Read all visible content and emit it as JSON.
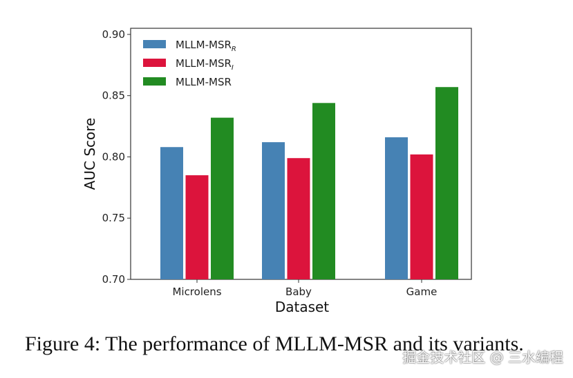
{
  "chart_data": {
    "type": "bar",
    "xlabel": "Dataset",
    "ylabel": "AUC Score",
    "ylim": [
      0.7,
      0.905
    ],
    "yticks": [
      "0.70",
      "0.75",
      "0.80",
      "0.85",
      "0.90"
    ],
    "categories": [
      "Microlens",
      "Baby",
      "Game"
    ],
    "series": [
      {
        "name": "MLLM-MSR",
        "subscript": "R",
        "color": "#4682b4",
        "values": [
          0.808,
          0.812,
          0.816
        ]
      },
      {
        "name": "MLLM-MSR",
        "subscript": "I",
        "color": "#dc143c",
        "values": [
          0.785,
          0.799,
          0.802
        ]
      },
      {
        "name": "MLLM-MSR",
        "subscript": "",
        "color": "#228b22",
        "values": [
          0.832,
          0.844,
          0.857
        ]
      }
    ],
    "legend_position": "top-left"
  },
  "caption": "Figure 4: The performance of MLLM-MSR and its variants.",
  "watermark": "掘金技术社区 @ 三水编程"
}
